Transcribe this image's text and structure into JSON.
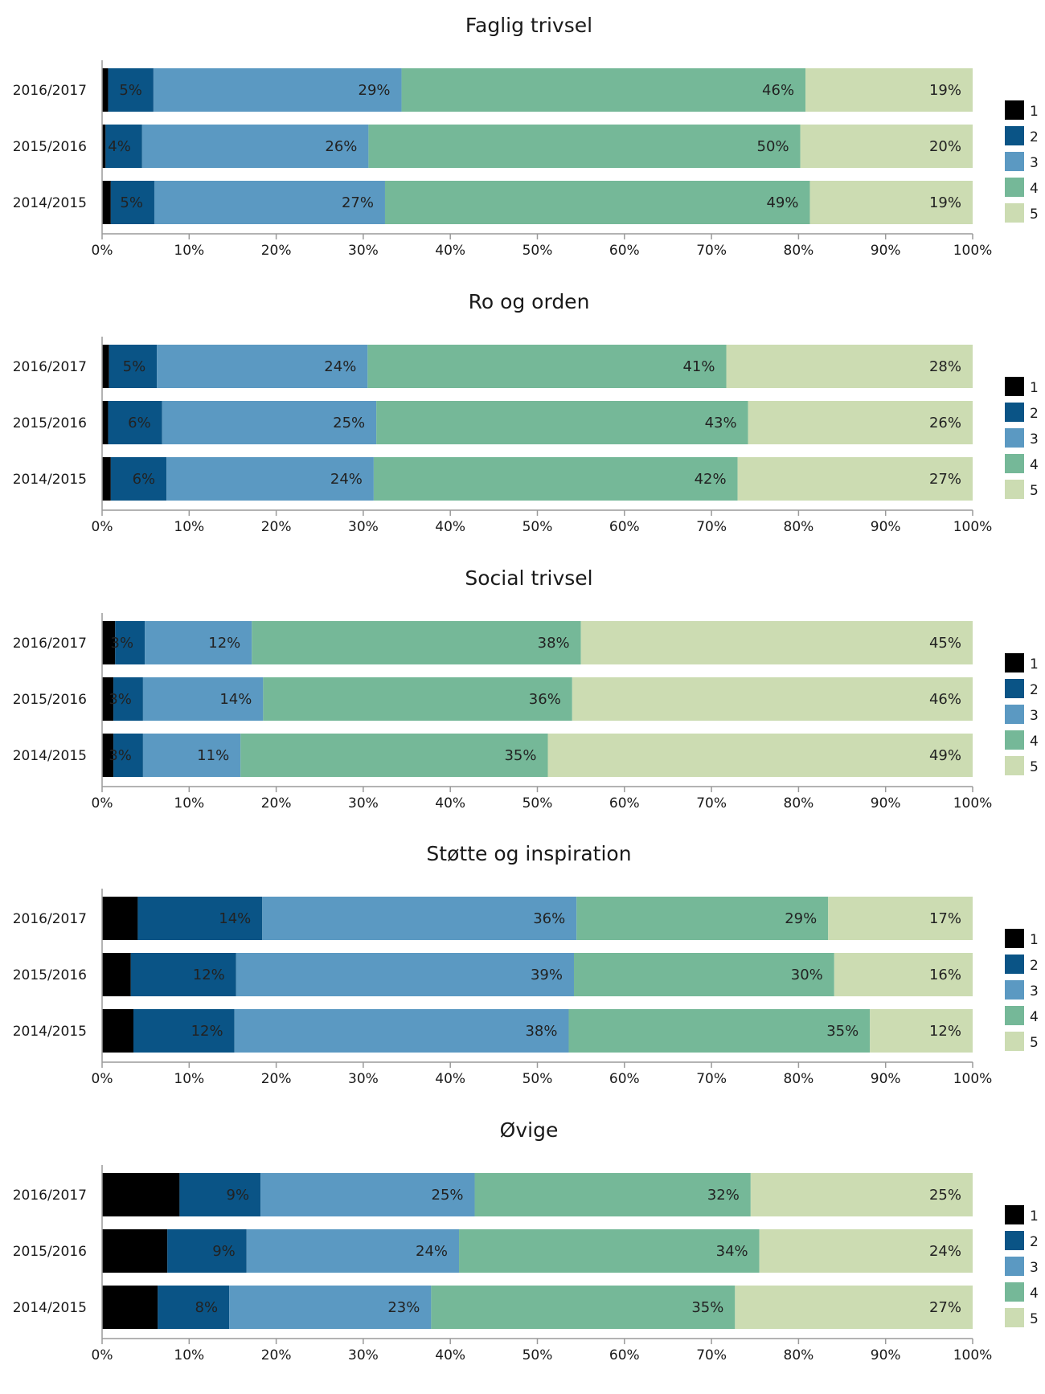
{
  "colors": {
    "1": "#000000",
    "2": "#0a5486",
    "3": "#5b99c2",
    "4": "#75b898",
    "5": "#ccdcb2"
  },
  "legend": [
    "1",
    "2",
    "3",
    "4",
    "5"
  ],
  "chart_data": [
    {
      "type": "bar",
      "orientation": "horizontal",
      "stacked": true,
      "title": "Faglig trivsel",
      "categories": [
        "2016/2017",
        "2015/2016",
        "2014/2015"
      ],
      "xlim": [
        0,
        100
      ],
      "xticks": [
        "0%",
        "10%",
        "20%",
        "30%",
        "40%",
        "50%",
        "60%",
        "70%",
        "80%",
        "90%",
        "100%"
      ],
      "series": [
        {
          "name": "1",
          "values": [
            0.7,
            0.4,
            1.0
          ],
          "labels": [
            "1%",
            "0%",
            "1%"
          ]
        },
        {
          "name": "2",
          "values": [
            5.2,
            4.2,
            5.0
          ],
          "labels": [
            "5%",
            "4%",
            "5%"
          ]
        },
        {
          "name": "3",
          "values": [
            28.5,
            26.0,
            26.5
          ],
          "labels": [
            "29%",
            "26%",
            "27%"
          ]
        },
        {
          "name": "4",
          "values": [
            46.4,
            49.6,
            48.8
          ],
          "labels": [
            "46%",
            "50%",
            "49%"
          ]
        },
        {
          "name": "5",
          "values": [
            19.2,
            19.8,
            18.7
          ],
          "labels": [
            "19%",
            "20%",
            "19%"
          ]
        }
      ]
    },
    {
      "type": "bar",
      "orientation": "horizontal",
      "stacked": true,
      "title": "Ro og orden",
      "categories": [
        "2016/2017",
        "2015/2016",
        "2014/2015"
      ],
      "xlim": [
        0,
        100
      ],
      "xticks": [
        "0%",
        "10%",
        "20%",
        "30%",
        "40%",
        "50%",
        "60%",
        "70%",
        "80%",
        "90%",
        "100%"
      ],
      "series": [
        {
          "name": "1",
          "values": [
            0.8,
            0.7,
            1.0
          ],
          "labels": [
            "1%",
            "1%",
            "1%"
          ]
        },
        {
          "name": "2",
          "values": [
            5.5,
            6.2,
            6.4
          ],
          "labels": [
            "5%",
            "6%",
            "6%"
          ]
        },
        {
          "name": "3",
          "values": [
            24.2,
            24.6,
            23.8
          ],
          "labels": [
            "24%",
            "25%",
            "24%"
          ]
        },
        {
          "name": "4",
          "values": [
            41.2,
            42.7,
            41.8
          ],
          "labels": [
            "41%",
            "43%",
            "42%"
          ]
        },
        {
          "name": "5",
          "values": [
            28.3,
            25.8,
            27.0
          ],
          "labels": [
            "28%",
            "26%",
            "27%"
          ]
        }
      ]
    },
    {
      "type": "bar",
      "orientation": "horizontal",
      "stacked": true,
      "title": "Social trivsel",
      "categories": [
        "2016/2017",
        "2015/2016",
        "2014/2015"
      ],
      "xlim": [
        0,
        100
      ],
      "xticks": [
        "0%",
        "10%",
        "20%",
        "30%",
        "40%",
        "50%",
        "60%",
        "70%",
        "80%",
        "90%",
        "100%"
      ],
      "series": [
        {
          "name": "1",
          "values": [
            1.5,
            1.3,
            1.3
          ],
          "labels": [
            "1%",
            "1%",
            "1%"
          ]
        },
        {
          "name": "2",
          "values": [
            3.4,
            3.4,
            3.4
          ],
          "labels": [
            "3%",
            "3%",
            "3%"
          ]
        },
        {
          "name": "3",
          "values": [
            12.3,
            13.8,
            11.2
          ],
          "labels": [
            "12%",
            "14%",
            "11%"
          ]
        },
        {
          "name": "4",
          "values": [
            37.8,
            35.5,
            35.3
          ],
          "labels": [
            "38%",
            "36%",
            "35%"
          ]
        },
        {
          "name": "5",
          "values": [
            45.0,
            46.0,
            48.8
          ],
          "labels": [
            "45%",
            "46%",
            "49%"
          ]
        }
      ]
    },
    {
      "type": "bar",
      "orientation": "horizontal",
      "stacked": true,
      "title": "Støtte og inspiration",
      "categories": [
        "2016/2017",
        "2015/2016",
        "2014/2015"
      ],
      "xlim": [
        0,
        100
      ],
      "xticks": [
        "0%",
        "10%",
        "20%",
        "30%",
        "40%",
        "50%",
        "60%",
        "70%",
        "80%",
        "90%",
        "100%"
      ],
      "series": [
        {
          "name": "1",
          "values": [
            4.1,
            3.3,
            3.6
          ],
          "labels": [
            "4%",
            "3%",
            "4%"
          ]
        },
        {
          "name": "2",
          "values": [
            14.3,
            12.1,
            11.6
          ],
          "labels": [
            "14%",
            "12%",
            "12%"
          ]
        },
        {
          "name": "3",
          "values": [
            36.1,
            38.8,
            38.4
          ],
          "labels": [
            "36%",
            "39%",
            "38%"
          ]
        },
        {
          "name": "4",
          "values": [
            28.9,
            29.9,
            34.6
          ],
          "labels": [
            "29%",
            "30%",
            "35%"
          ]
        },
        {
          "name": "5",
          "values": [
            16.6,
            15.9,
            11.8
          ],
          "labels": [
            "17%",
            "16%",
            "12%"
          ]
        }
      ]
    },
    {
      "type": "bar",
      "orientation": "horizontal",
      "stacked": true,
      "title": "Øvige",
      "categories": [
        "2016/2017",
        "2015/2016",
        "2014/2015"
      ],
      "xlim": [
        0,
        100
      ],
      "xticks": [
        "0%",
        "10%",
        "20%",
        "30%",
        "40%",
        "50%",
        "60%",
        "70%",
        "80%",
        "90%",
        "100%"
      ],
      "series": [
        {
          "name": "1",
          "values": [
            8.9,
            7.5,
            6.4
          ],
          "labels": [
            "9%",
            "7%",
            "6%"
          ]
        },
        {
          "name": "2",
          "values": [
            9.3,
            9.1,
            8.2
          ],
          "labels": [
            "9%",
            "9%",
            "8%"
          ]
        },
        {
          "name": "3",
          "values": [
            24.6,
            24.4,
            23.2
          ],
          "labels": [
            "25%",
            "24%",
            "23%"
          ]
        },
        {
          "name": "4",
          "values": [
            31.7,
            34.5,
            34.9
          ],
          "labels": [
            "32%",
            "34%",
            "35%"
          ]
        },
        {
          "name": "5",
          "values": [
            25.5,
            24.5,
            27.3
          ],
          "labels": [
            "25%",
            "24%",
            "27%"
          ]
        }
      ]
    }
  ]
}
